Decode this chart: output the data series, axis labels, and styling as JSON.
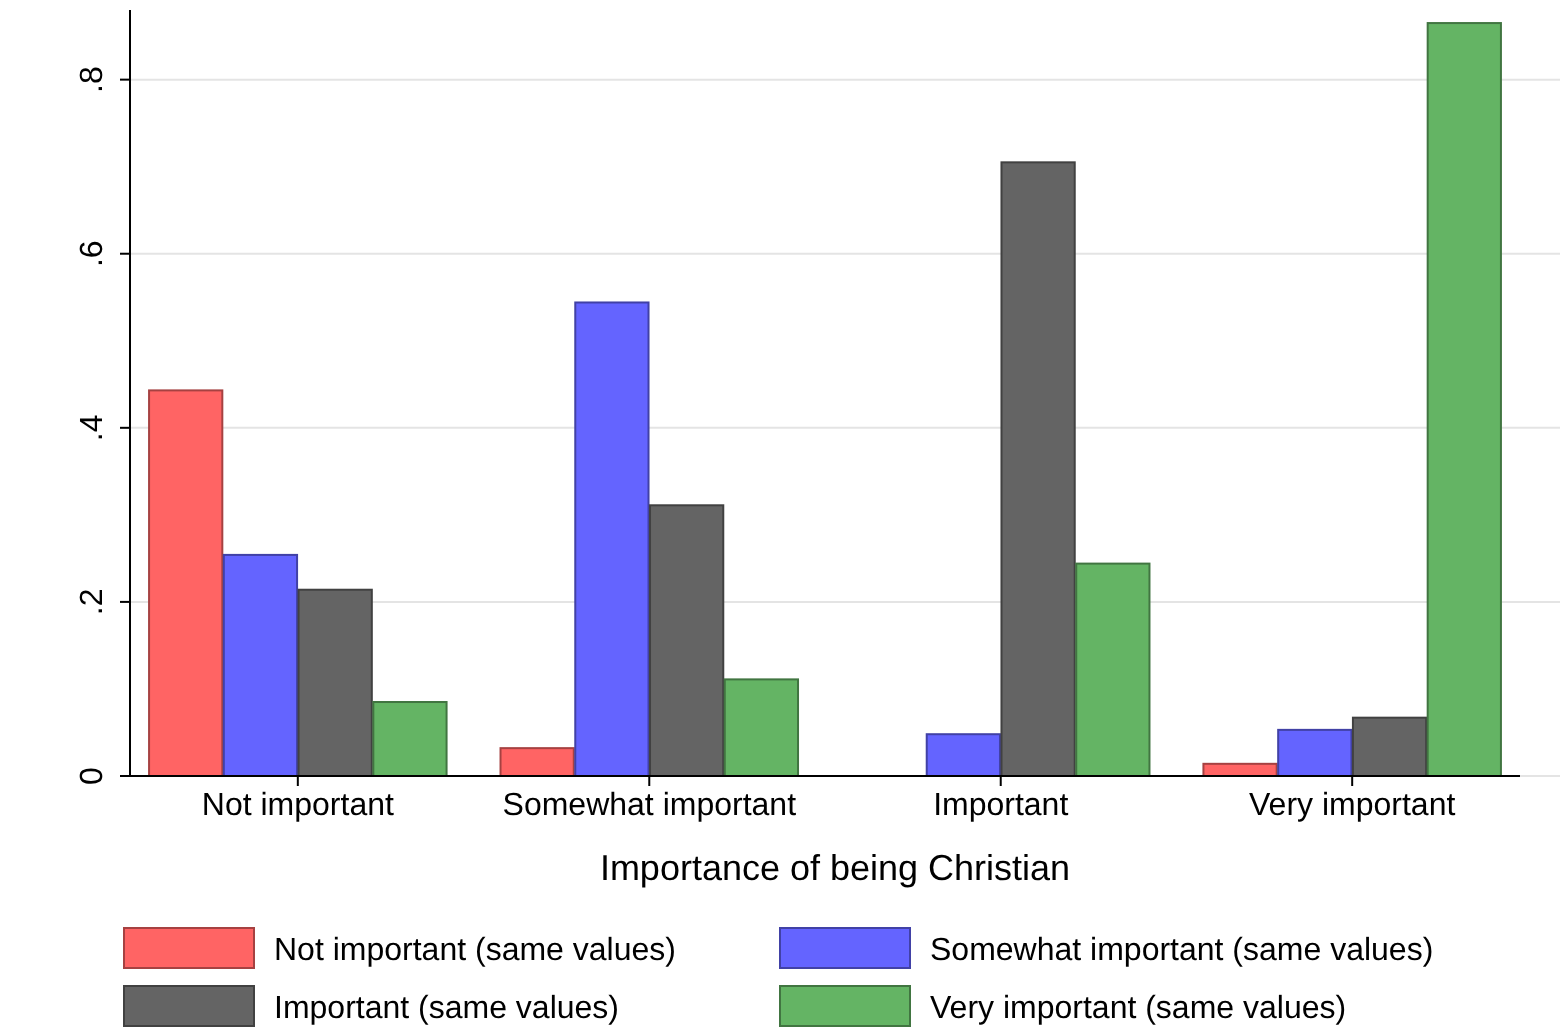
{
  "chart_data": {
    "type": "bar",
    "xlabel": "Importance of being Christian",
    "categories": [
      "Not important",
      "Somewhat important",
      "Important",
      "Very important"
    ],
    "series": [
      {
        "name": "Not important (same values)",
        "color": "#ff6464",
        "values": [
          0.443,
          0.032,
          0,
          0.014
        ]
      },
      {
        "name": "Somewhat important (same values)",
        "color": "#6464ff",
        "values": [
          0.254,
          0.544,
          0.048,
          0.053
        ]
      },
      {
        "name": "Important (same values)",
        "color": "#646464",
        "values": [
          0.214,
          0.311,
          0.705,
          0.067
        ]
      },
      {
        "name": "Very important (same values)",
        "color": "#64b464",
        "values": [
          0.085,
          0.111,
          0.244,
          0.865
        ]
      }
    ],
    "ylim": [
      0,
      0.88
    ],
    "yticks": [
      0,
      {
        "value": 0.2,
        "label": ".2"
      },
      {
        "value": 0.4,
        "label": ".4"
      },
      {
        "value": 0.6,
        "label": ".6"
      },
      {
        "value": 0.8,
        "label": ".8"
      }
    ],
    "grid": "y",
    "legend": "bottom"
  }
}
